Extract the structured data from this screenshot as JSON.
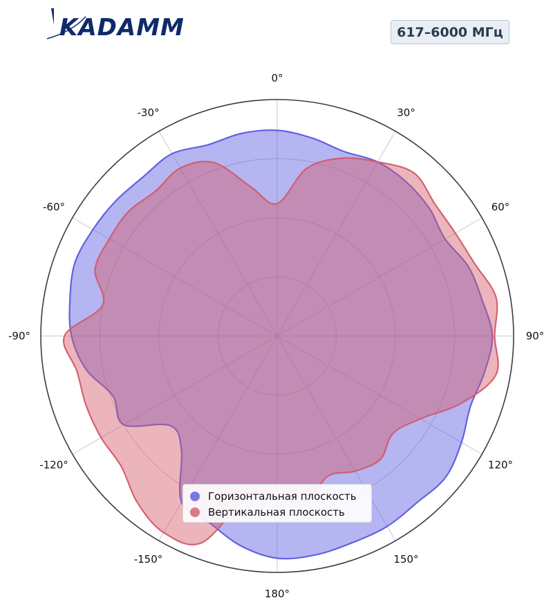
{
  "logo": {
    "text": "KADAMM"
  },
  "badge": {
    "label": "617–6000 МГц"
  },
  "colors": {
    "horizontal": "#5b5be0",
    "vertical": "#d45a6a",
    "frame": "#3a3a4a"
  },
  "chart_data": {
    "type": "polar-area",
    "theta_ticks": [
      "0°",
      "30°",
      "60°",
      "90°",
      "120°",
      "150°",
      "180°",
      "-150°",
      "-120°",
      "-90°",
      "-60°",
      "-30°"
    ],
    "r_range": [
      0,
      1
    ],
    "grid": true,
    "legend_position": "bottom-center",
    "series": [
      {
        "name": "Горизонтальная плоскость",
        "color": "#5b5be0",
        "angles": [
          0,
          10,
          20,
          30,
          40,
          50,
          60,
          70,
          80,
          90,
          100,
          110,
          120,
          130,
          140,
          150,
          160,
          170,
          180,
          190,
          200,
          210,
          220,
          230,
          240,
          250,
          260,
          270,
          280,
          290,
          300,
          310,
          320,
          330,
          340,
          350
        ],
        "values": [
          0.87,
          0.85,
          0.83,
          0.85,
          0.85,
          0.84,
          0.82,
          0.86,
          0.88,
          0.91,
          0.89,
          0.87,
          0.9,
          0.93,
          0.92,
          0.93,
          0.93,
          0.94,
          0.94,
          0.9,
          0.84,
          0.81,
          0.63,
          0.59,
          0.75,
          0.74,
          0.82,
          0.87,
          0.89,
          0.91,
          0.9,
          0.89,
          0.88,
          0.89,
          0.86,
          0.87
        ]
      },
      {
        "name": "Вертикальная плоскость",
        "color": "#d45a6a",
        "angles": [
          0,
          10,
          20,
          30,
          40,
          50,
          60,
          70,
          80,
          90,
          100,
          110,
          120,
          130,
          140,
          150,
          160,
          170,
          180,
          190,
          200,
          210,
          220,
          230,
          240,
          250,
          260,
          270,
          280,
          290,
          300,
          310,
          320,
          330,
          340,
          350
        ],
        "values": [
          0.56,
          0.72,
          0.8,
          0.85,
          0.9,
          0.87,
          0.87,
          0.89,
          0.94,
          0.92,
          0.94,
          0.83,
          0.7,
          0.64,
          0.68,
          0.66,
          0.63,
          0.71,
          0.68,
          0.68,
          0.93,
          0.96,
          0.92,
          0.86,
          0.86,
          0.86,
          0.86,
          0.9,
          0.75,
          0.82,
          0.82,
          0.82,
          0.8,
          0.82,
          0.78,
          0.64
        ]
      }
    ]
  }
}
